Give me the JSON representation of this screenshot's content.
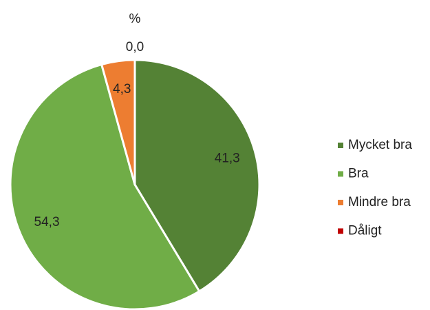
{
  "chart_data": {
    "type": "pie",
    "title": "%",
    "categories": [
      "Mycket bra",
      "Bra",
      "Mindre bra",
      "Dåligt"
    ],
    "values": [
      41.3,
      54.3,
      4.3,
      0.0
    ],
    "value_labels": [
      "41,3",
      "54,3",
      "4,3",
      "0,0"
    ],
    "colors": [
      "#548235",
      "#70ad47",
      "#ed7d31",
      "#c00000"
    ],
    "legend": "right"
  }
}
